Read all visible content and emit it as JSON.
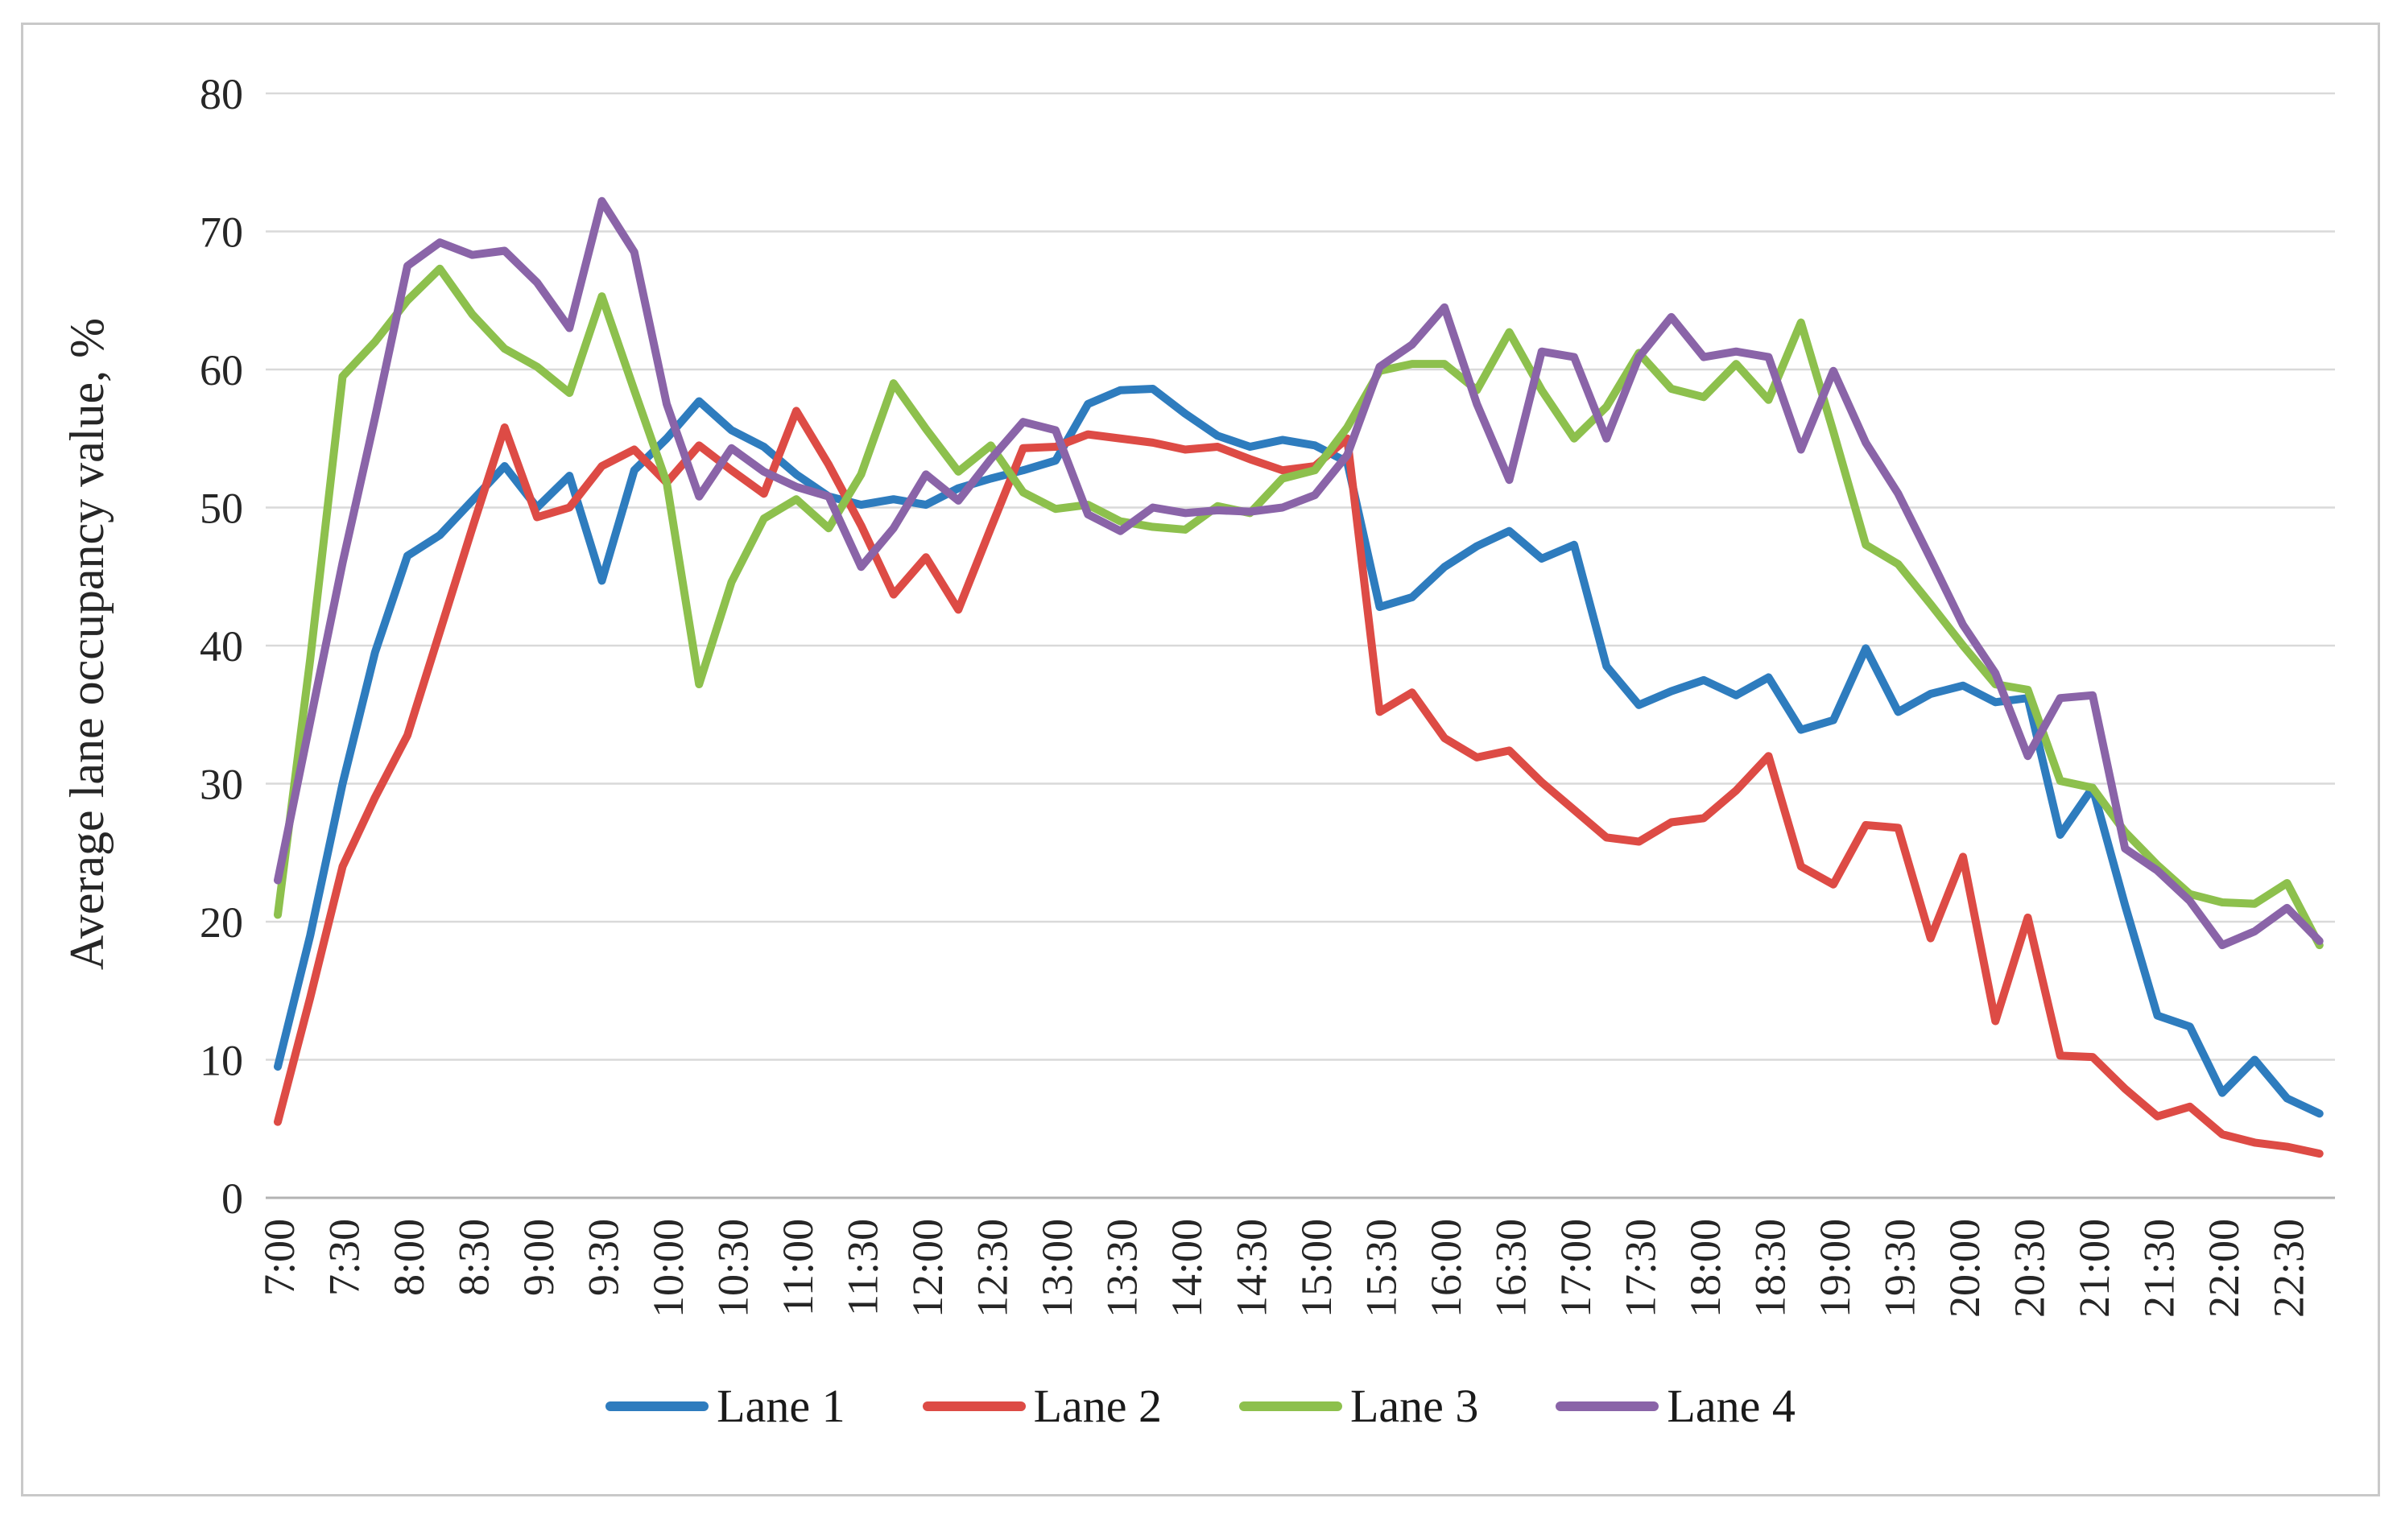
{
  "figure": {
    "background": "#ffffff",
    "border_color": "#c9c9c9"
  },
  "chart_data": {
    "type": "line",
    "title": "",
    "xlabel": "",
    "ylabel": "Average lane occupancy value, %",
    "ylim": [
      0,
      80
    ],
    "yticks": [
      0,
      10,
      20,
      30,
      40,
      50,
      60,
      70,
      80
    ],
    "grid": "horizontal",
    "gridline_color": "#d9d9d9",
    "axis_line_color": "#b3b3b3",
    "legend_position": "bottom",
    "x_start": "7:00",
    "x_step_minutes": 15,
    "points_per_label": 2,
    "x_tick_labels": [
      "7:00",
      "7:30",
      "8:00",
      "8:30",
      "9:00",
      "9:30",
      "10:00",
      "10:30",
      "11:00",
      "11:30",
      "12:00",
      "12:30",
      "13:00",
      "13:30",
      "14:00",
      "14:30",
      "15:00",
      "15:30",
      "16:00",
      "16:30",
      "17:00",
      "17:30",
      "18:00",
      "18:30",
      "19:00",
      "19:30",
      "20:00",
      "20:30",
      "21:00",
      "21:30",
      "22:00",
      "22:30"
    ],
    "series": [
      {
        "name": "Lane 1",
        "color": "#2e7cbe",
        "values": [
          9.5,
          19,
          30,
          39.5,
          46.5,
          48,
          50.5,
          53,
          50,
          52.3,
          44.7,
          52.7,
          55,
          57.7,
          55.6,
          54.4,
          52.4,
          50.8,
          50.2,
          50.6,
          50.2,
          51.4,
          52.1,
          52.7,
          53.4,
          57.5,
          58.5,
          58.6,
          56.8,
          55.2,
          54.4,
          54.9,
          54.5,
          53.3,
          42.8,
          43.5,
          45.7,
          47.2,
          48.3,
          46.3,
          47.3,
          38.5,
          35.7,
          36.7,
          37.5,
          36.4,
          37.7,
          33.9,
          34.6,
          39.8,
          35.2,
          36.5,
          37.1,
          35.9,
          36.2,
          26.3,
          29.7,
          21.2,
          13.2,
          12.4,
          7.6,
          10,
          7.2,
          6.1
        ]
      },
      {
        "name": "Lane 2",
        "color": "#dd4b45",
        "values": [
          5.5,
          14.5,
          24,
          29,
          33.5,
          41,
          48.5,
          55.8,
          49.3,
          50,
          53,
          54.2,
          51.8,
          54.5,
          52.7,
          51,
          57,
          53.1,
          48.7,
          43.7,
          46.4,
          42.6,
          48.5,
          54.3,
          54.4,
          55.3,
          55,
          54.7,
          54.2,
          54.4,
          53.5,
          52.7,
          53,
          55,
          35.2,
          36.6,
          33.3,
          31.9,
          32.4,
          30.1,
          28.1,
          26.1,
          25.8,
          27.2,
          27.5,
          29.5,
          32,
          24,
          22.7,
          27,
          26.8,
          18.8,
          24.7,
          12.8,
          20.3,
          10.3,
          10.2,
          7.9,
          5.9,
          6.6,
          4.6,
          4,
          3.7,
          3.2
        ]
      },
      {
        "name": "Lane 3",
        "color": "#8dc04d",
        "values": [
          20.5,
          39,
          59.5,
          62,
          65,
          67.3,
          64,
          61.5,
          60.2,
          58.3,
          65.3,
          58.5,
          51.8,
          37.2,
          44.6,
          49.2,
          50.6,
          48.5,
          52.4,
          59,
          55.7,
          52.6,
          54.5,
          51.1,
          49.9,
          50.2,
          49,
          48.6,
          48.4,
          50.1,
          49.6,
          52.1,
          52.7,
          55.8,
          59.9,
          60.4,
          60.4,
          58.5,
          62.7,
          58.5,
          55,
          57.3,
          61.2,
          58.6,
          58,
          60.4,
          57.8,
          63.4,
          55.5,
          47.3,
          45.9,
          43,
          40,
          37.2,
          36.8,
          30.2,
          29.7,
          26.5,
          24.1,
          22,
          21.4,
          21.3,
          22.8,
          18.3
        ]
      },
      {
        "name": "Lane 4",
        "color": "#8a64a8",
        "values": [
          23,
          34.5,
          46,
          56.5,
          67.5,
          69.2,
          68.3,
          68.6,
          66.3,
          63,
          72.2,
          68.5,
          57.5,
          50.8,
          54.3,
          52.6,
          51.5,
          50.8,
          45.7,
          48.5,
          52.4,
          50.5,
          53.5,
          56.2,
          55.6,
          49.5,
          48.3,
          50,
          49.6,
          49.8,
          49.7,
          50,
          50.9,
          53.8,
          60.2,
          61.8,
          64.5,
          57.5,
          52,
          61.3,
          60.9,
          55,
          60.9,
          63.8,
          60.9,
          61.3,
          60.9,
          54.2,
          59.9,
          54.7,
          51,
          46.3,
          41.5,
          38,
          32,
          36.2,
          36.4,
          25.3,
          23.7,
          21.5,
          18.3,
          19.3,
          21,
          18.6
        ]
      }
    ]
  }
}
